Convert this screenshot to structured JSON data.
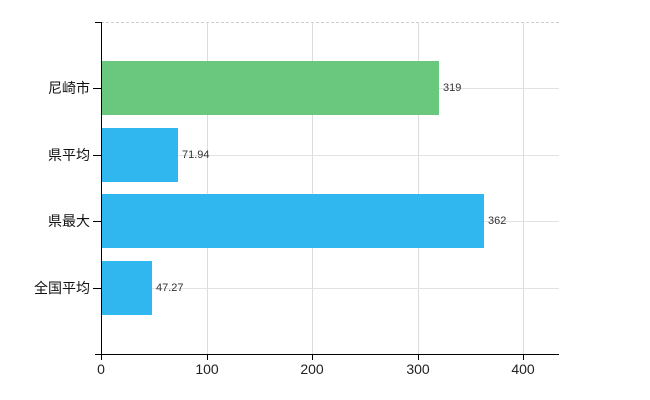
{
  "chart_data": {
    "type": "bar",
    "orientation": "horizontal",
    "title": "",
    "categories": [
      "尼崎市",
      "県平均",
      "県最大",
      "全国平均"
    ],
    "values": [
      319,
      71.94,
      362,
      47.27
    ],
    "data_labels": [
      "319",
      "71.94",
      "362",
      "47.27"
    ],
    "bar_colors": [
      "#69c87d",
      "#30b7f0",
      "#30b7f0",
      "#30b7f0"
    ],
    "x_axis": {
      "ticks": [
        0,
        100,
        200,
        300,
        400
      ],
      "tick_labels": [
        "0",
        "100",
        "200",
        "300",
        "400"
      ],
      "range": [
        0,
        433
      ]
    },
    "legend": null,
    "grid": {
      "vertical_lines": true,
      "horizontal_row_lines": true,
      "top_border_style": "dashed"
    },
    "colors": {
      "axis": "#000000",
      "grid_vertical": "#dcdcdc",
      "grid_horizontal": "#e2e2e2",
      "top_border": "#cfcfcf",
      "category_text": "#111111",
      "value_text": "#333333",
      "x_tick_text": "#222222",
      "background": "#ffffff"
    }
  }
}
